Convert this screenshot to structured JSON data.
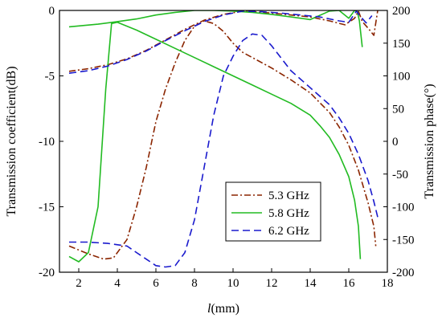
{
  "chart_data": {
    "type": "line",
    "xlabel_italic": "l",
    "xlabel_rest": "(mm)",
    "ylabel_left": "Transmission coefficient(dB)",
    "ylabel_right": "Transmission phase(°)",
    "xlim": [
      1,
      18
    ],
    "ylim_left": [
      -20,
      0
    ],
    "ylim_right": [
      -200,
      200
    ],
    "x_ticks": [
      "2",
      "4",
      "6",
      "8",
      "10",
      "12",
      "14",
      "16",
      "18"
    ],
    "y_left_ticks": [
      "0",
      "-5",
      "-10",
      "-15",
      "-20"
    ],
    "y_right_ticks": [
      "200",
      "150",
      "100",
      "50",
      "0",
      "-50",
      "-100",
      "-150",
      "-200"
    ],
    "legend": {
      "placement": "lower-center"
    },
    "series": [
      {
        "name": "5.3 GHz",
        "color": "#8b2500",
        "dash": "dashdot",
        "magnitude": {
          "x": [
            1.5,
            2.5,
            3.3,
            3.8,
            4.5,
            5.0,
            5.5,
            6.0,
            6.5,
            7.0,
            7.5,
            8.0,
            8.5,
            9.0,
            9.5,
            10.0,
            10.5,
            11.0,
            12.0,
            13.0,
            14.0,
            15.0,
            15.5,
            16.0,
            16.5,
            17.0,
            17.3,
            17.4
          ],
          "y": [
            -18.0,
            -18.6,
            -19.0,
            -18.9,
            -17.5,
            -15.0,
            -12.0,
            -8.5,
            -6.0,
            -4.0,
            -2.3,
            -1.2,
            -0.8,
            -1.0,
            -1.6,
            -2.5,
            -3.2,
            -3.6,
            -4.4,
            -5.3,
            -6.3,
            -7.8,
            -8.9,
            -10.3,
            -12.2,
            -14.7,
            -16.5,
            -18.0
          ]
        },
        "phase": {
          "x": [
            1.5,
            2.5,
            3.5,
            4.5,
            5.5,
            6.5,
            7.5,
            8.5,
            9.5,
            10.5,
            11.0,
            12.0,
            13.0,
            14.0,
            15.0,
            15.8,
            16.3,
            16.5,
            16.7,
            17.0,
            17.3,
            17.5
          ],
          "y": [
            107,
            111,
            117,
            126,
            139,
            155,
            171,
            185,
            194,
            199,
            198,
            196,
            193,
            190,
            184,
            178,
            188,
            199,
            183,
            173,
            162,
            200
          ]
        }
      },
      {
        "name": "5.8 GHz",
        "color": "#22bb22",
        "dash": "solid",
        "magnitude": {
          "x": [
            1.5,
            2.0,
            2.5,
            3.0,
            3.4,
            3.7,
            4.0,
            5.0,
            6.0,
            7.0,
            8.0,
            9.0,
            10.0,
            11.0,
            12.0,
            13.0,
            14.0,
            14.5,
            15.0,
            15.5,
            16.0,
            16.3,
            16.5,
            16.6
          ],
          "y": [
            -18.8,
            -19.2,
            -18.5,
            -15.0,
            -6.0,
            -1.0,
            -0.9,
            -1.5,
            -2.2,
            -2.9,
            -3.6,
            -4.3,
            -5.0,
            -5.7,
            -6.4,
            -7.1,
            -8.0,
            -8.8,
            -9.7,
            -11.0,
            -12.7,
            -14.5,
            -16.5,
            -19.0
          ]
        },
        "phase": {
          "x": [
            1.5,
            3.0,
            4.0,
            5.0,
            6.0,
            7.0,
            8.0,
            9.0,
            10.0,
            11.0,
            12.0,
            13.0,
            14.0,
            15.0,
            15.5,
            16.0,
            16.3,
            16.45,
            16.55,
            16.7
          ],
          "y": [
            175,
            179,
            183,
            187,
            193,
            197,
            200,
            200,
            199,
            197,
            194,
            190,
            186,
            199,
            200,
            188,
            200,
            198,
            184,
            144
          ]
        }
      },
      {
        "name": "6.2 GHz",
        "color": "#1a1acd",
        "dash": "dashed",
        "magnitude": {
          "x": [
            1.5,
            2.5,
            3.5,
            4.5,
            5.0,
            5.5,
            6.0,
            6.5,
            7.0,
            7.5,
            8.0,
            8.5,
            9.0,
            9.5,
            10.0,
            10.5,
            11.0,
            11.5,
            12.0,
            13.0,
            14.0,
            15.0,
            15.5,
            16.0,
            16.5,
            17.0,
            17.3,
            17.5
          ],
          "y": [
            -17.7,
            -17.7,
            -17.8,
            -18.0,
            -18.5,
            -19.0,
            -19.5,
            -19.6,
            -19.5,
            -18.5,
            -16.0,
            -12.0,
            -8.0,
            -5.0,
            -3.5,
            -2.3,
            -1.8,
            -1.9,
            -2.7,
            -4.6,
            -5.9,
            -7.2,
            -8.2,
            -9.4,
            -11.0,
            -13.0,
            -14.6,
            -15.8
          ]
        },
        "phase": {
          "x": [
            1.5,
            2.5,
            3.5,
            4.5,
            5.5,
            6.5,
            7.5,
            8.5,
            9.5,
            10.5,
            11.5,
            12.5,
            13.5,
            14.5,
            15.5,
            16.0,
            16.4,
            16.6,
            16.9,
            17.2
          ],
          "y": [
            104,
            108,
            115,
            125,
            138,
            154,
            169,
            183,
            193,
            199,
            198,
            196,
            193,
            190,
            184,
            182,
            199,
            191,
            181,
            192
          ]
        }
      }
    ]
  }
}
